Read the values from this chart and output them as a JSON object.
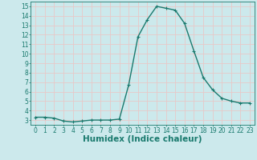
{
  "x": [
    0,
    1,
    2,
    3,
    4,
    5,
    6,
    7,
    8,
    9,
    10,
    11,
    12,
    13,
    14,
    15,
    16,
    17,
    18,
    19,
    20,
    21,
    22,
    23
  ],
  "y": [
    3.3,
    3.3,
    3.2,
    2.9,
    2.8,
    2.9,
    3.0,
    3.0,
    3.0,
    3.1,
    6.7,
    11.8,
    13.6,
    15.0,
    14.8,
    14.6,
    13.2,
    10.3,
    7.5,
    6.2,
    5.3,
    5.0,
    4.8,
    4.8
  ],
  "line_color": "#1a7a6e",
  "marker": "+",
  "marker_size": 3,
  "linewidth": 1.0,
  "bg_color": "#cce9ec",
  "grid_color": "#e8c8c8",
  "xlabel": "Humidex (Indice chaleur)",
  "xlim": [
    -0.5,
    23.5
  ],
  "ylim": [
    2.5,
    15.5
  ],
  "yticks": [
    3,
    4,
    5,
    6,
    7,
    8,
    9,
    10,
    11,
    12,
    13,
    14,
    15
  ],
  "xticks": [
    0,
    1,
    2,
    3,
    4,
    5,
    6,
    7,
    8,
    9,
    10,
    11,
    12,
    13,
    14,
    15,
    16,
    17,
    18,
    19,
    20,
    21,
    22,
    23
  ],
  "tick_fontsize": 5.5,
  "xlabel_fontsize": 7.5
}
